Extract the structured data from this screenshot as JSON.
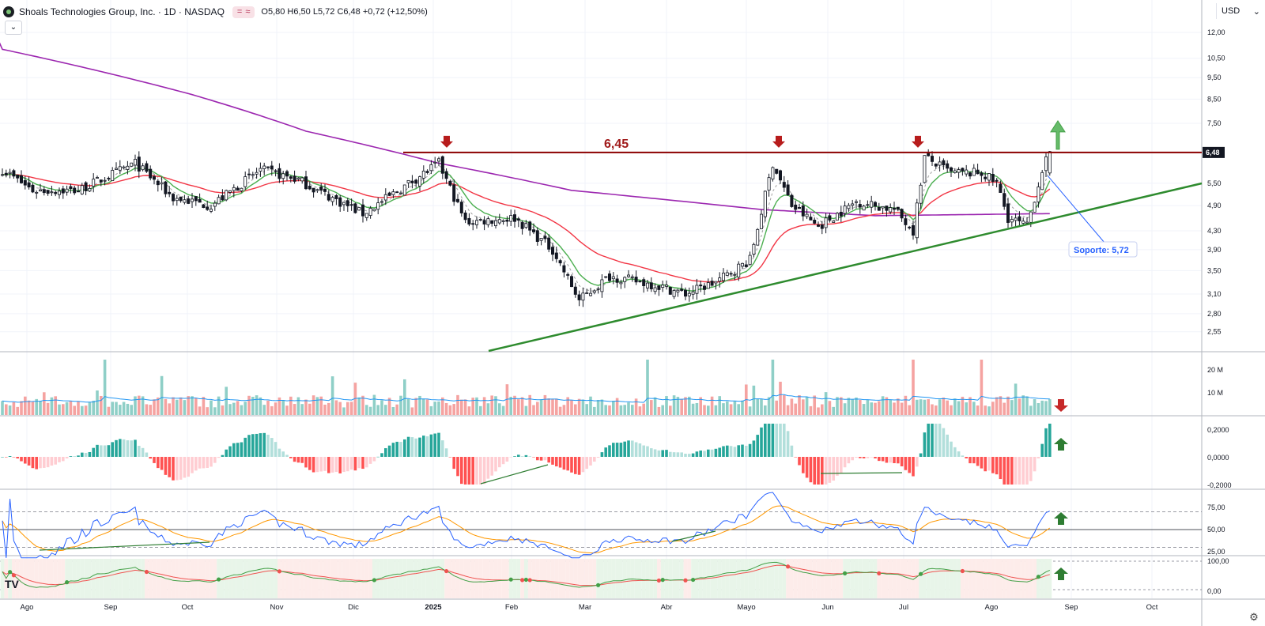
{
  "header": {
    "title": "Shoals Technologies Group, Inc. · 1D · NASDAQ",
    "pill_left": "=",
    "pill_right": "≈",
    "o": "O5,80",
    "h": "H6,50",
    "l": "L5,72",
    "c": "C6,48",
    "change": "+0,72 (+12,50%)"
  },
  "collapse_icon": "chevron-down-icon",
  "currency": "USD",
  "colors": {
    "up": "#26a69a",
    "down": "#ef5350",
    "resistance": "#8b0000",
    "trend": "#2e8b2e",
    "ema_long": "#9c27b0",
    "ema_mid": "#f23645",
    "ema_short": "#4caf50",
    "rsi": "#2962ff",
    "rsi_ma": "#ff9800"
  },
  "chart_data": {
    "type": "candlestick",
    "price_ticks": [
      "12,00",
      "10,50",
      "9,50",
      "8,50",
      "7,50",
      "6,48",
      "5,50",
      "4,90",
      "4,30",
      "3,90",
      "3,50",
      "3,10",
      "2,80",
      "2,55"
    ],
    "current_price_label": "6,48",
    "x_labels": [
      "Ago",
      "Sep",
      "Oct",
      "Nov",
      "Dic",
      "2025",
      "Feb",
      "Mar",
      "Abr",
      "Mayo",
      "Jun",
      "Jul",
      "Ago",
      "Sep",
      "Oct"
    ],
    "resistance": {
      "value": 6.45,
      "label": "6,45"
    },
    "support_callout": "Soporte: 5,72",
    "close_anchors": [
      [
        0,
        5.9
      ],
      [
        8,
        5.3
      ],
      [
        20,
        5.3
      ],
      [
        35,
        6.1
      ],
      [
        45,
        5.1
      ],
      [
        55,
        4.9
      ],
      [
        68,
        5.9
      ],
      [
        78,
        5.6
      ],
      [
        83,
        5.3
      ],
      [
        95,
        4.7
      ],
      [
        100,
        5.0
      ],
      [
        115,
        6.1
      ],
      [
        122,
        4.5
      ],
      [
        135,
        4.6
      ],
      [
        145,
        3.9
      ],
      [
        152,
        3.0
      ],
      [
        160,
        3.4
      ],
      [
        172,
        3.25
      ],
      [
        180,
        3.1
      ],
      [
        188,
        3.3
      ],
      [
        197,
        3.7
      ],
      [
        203,
        6.1
      ],
      [
        208,
        4.9
      ],
      [
        215,
        4.4
      ],
      [
        225,
        5.0
      ],
      [
        235,
        4.8
      ],
      [
        240,
        4.3
      ],
      [
        243,
        6.3
      ],
      [
        250,
        5.8
      ],
      [
        258,
        5.8
      ],
      [
        262,
        5.5
      ],
      [
        265,
        4.6
      ],
      [
        270,
        4.4
      ],
      [
        274,
        5.9
      ],
      [
        276,
        6.48
      ]
    ],
    "ema_long_anchors": [
      [
        0,
        11.0
      ],
      [
        50,
        8.7
      ],
      [
        80,
        7.2
      ],
      [
        115,
        6.1
      ],
      [
        150,
        5.3
      ],
      [
        200,
        4.8
      ],
      [
        230,
        4.65
      ],
      [
        276,
        4.7
      ]
    ],
    "volume_ticks": [
      "20 M",
      "10 M"
    ],
    "macd_ticks": [
      "0,2000",
      "0,0000",
      "-0,2000"
    ],
    "rsi_ticks": [
      "75,00",
      "50,00",
      "25,00"
    ],
    "osc_ticks": [
      "100,00",
      "0,00"
    ]
  }
}
